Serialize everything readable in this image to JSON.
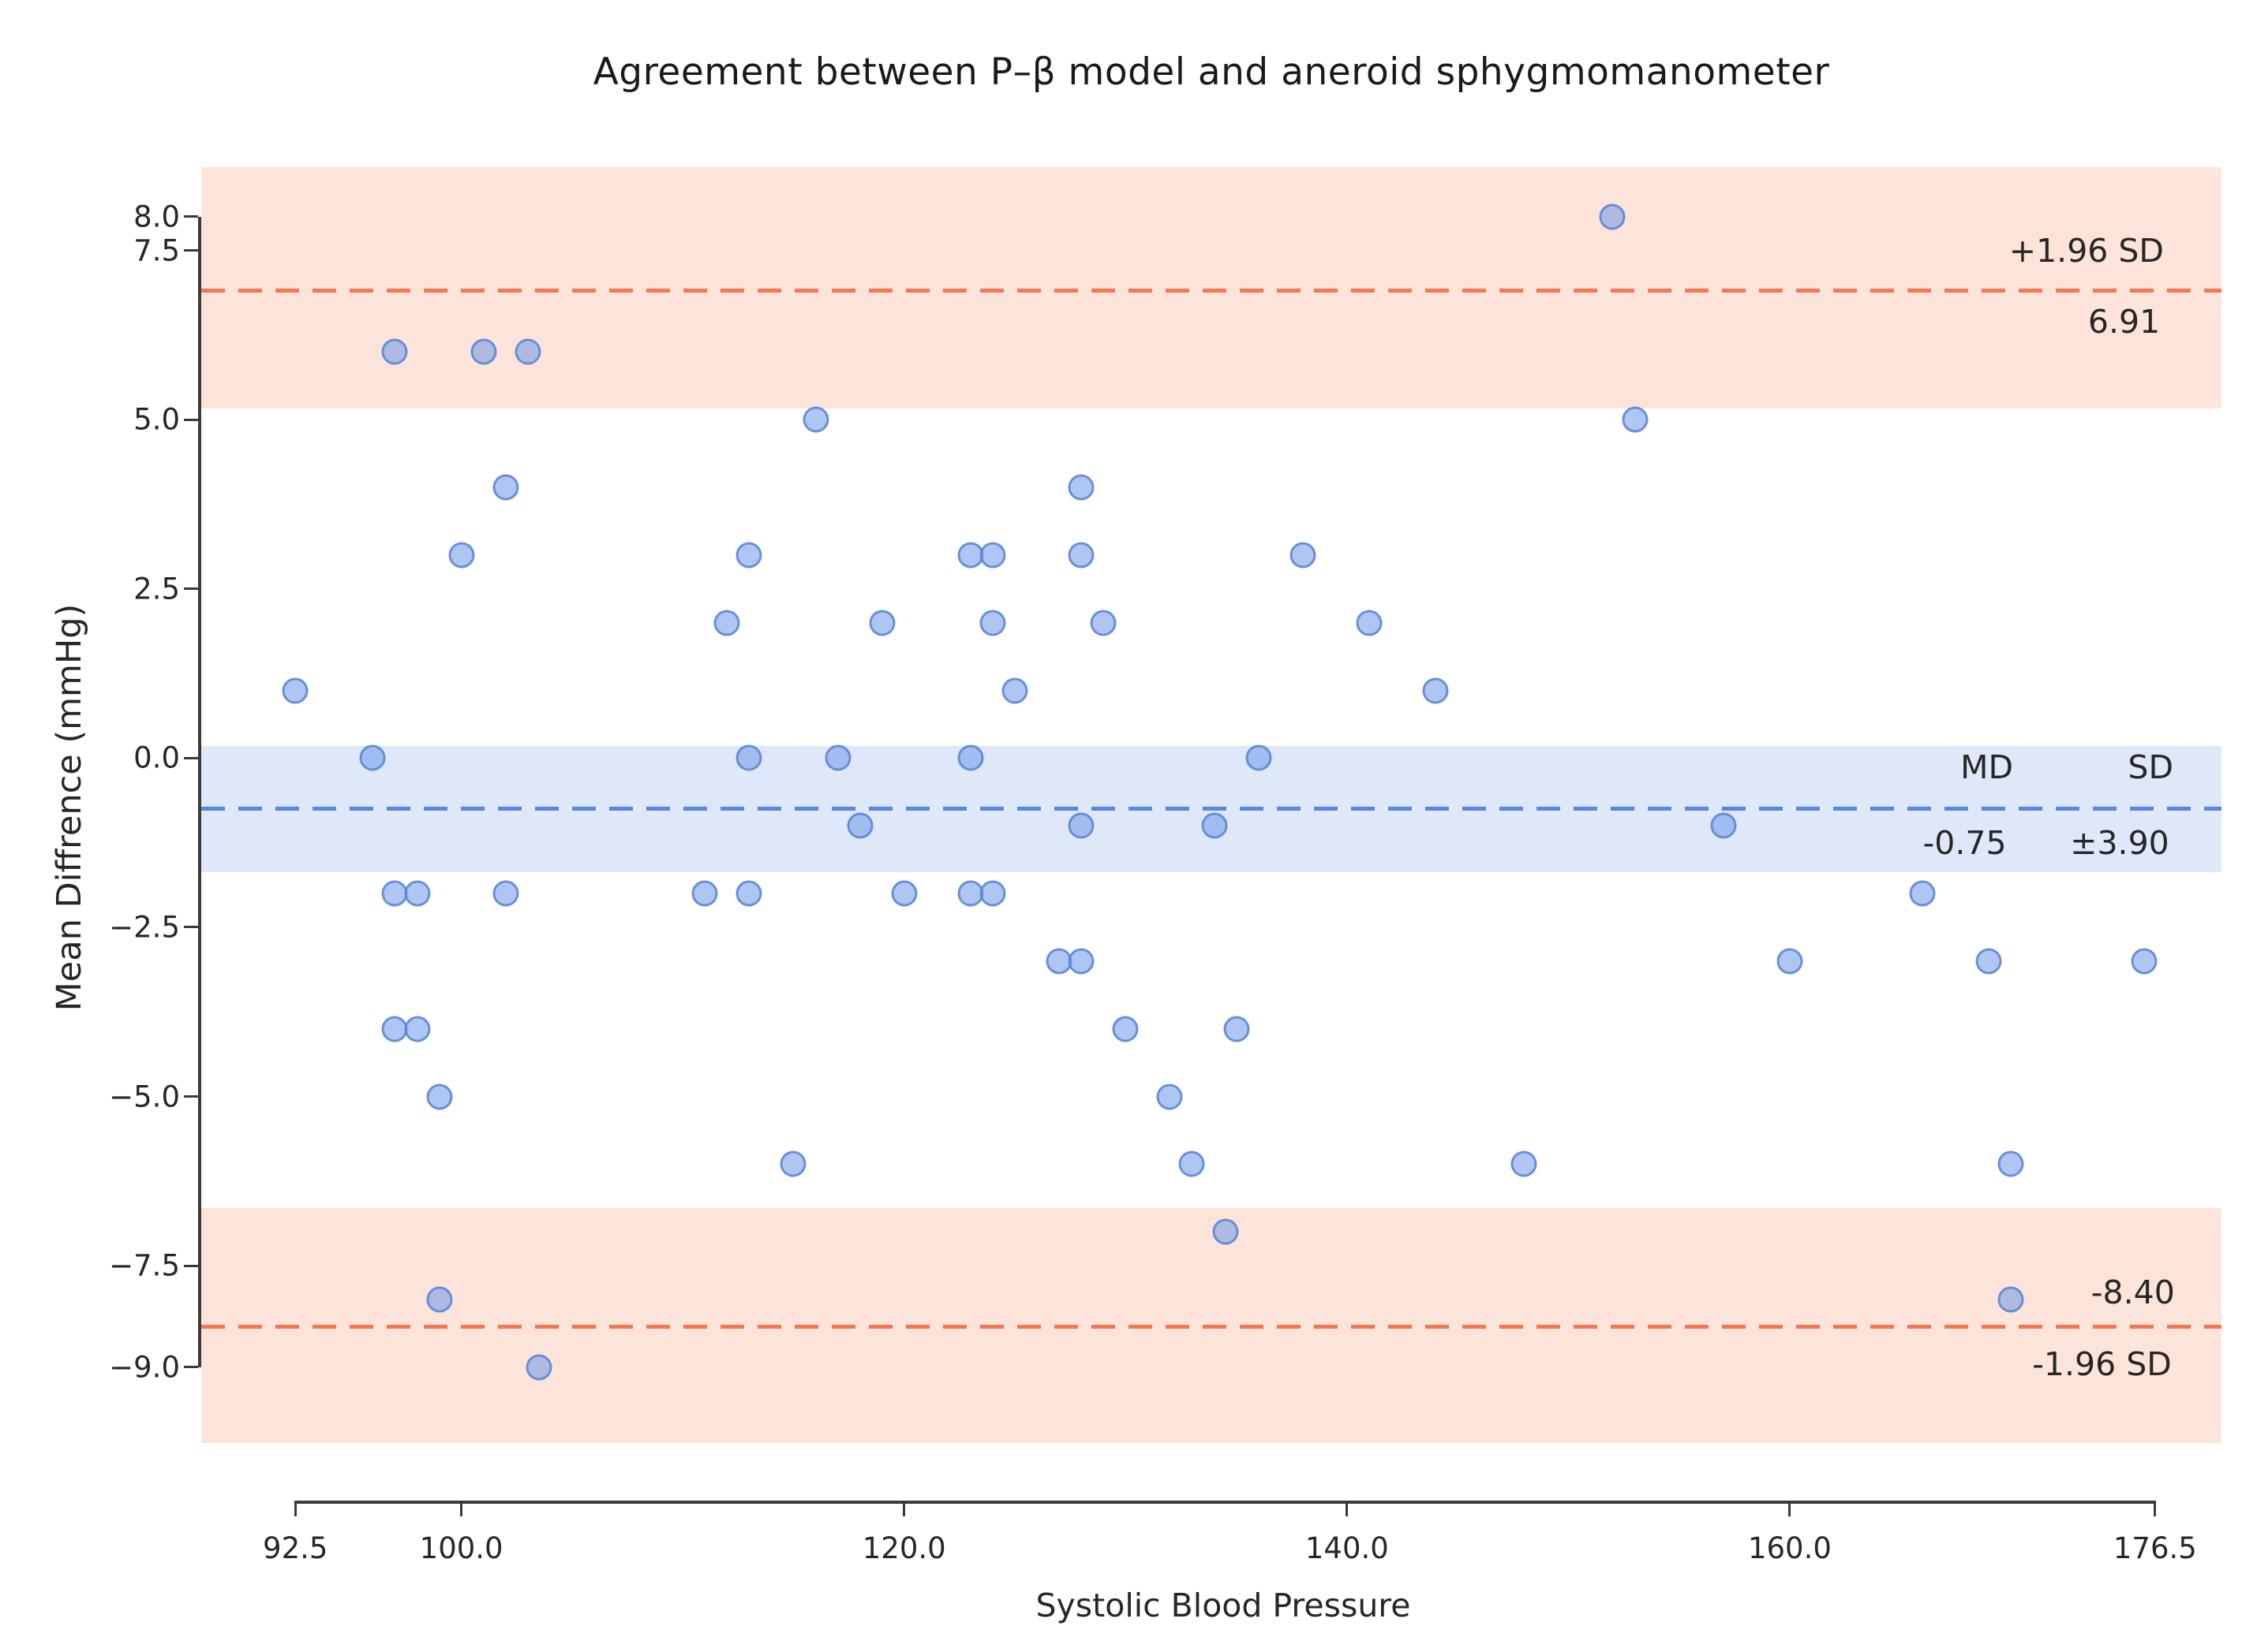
{
  "chart_data": {
    "type": "scatter",
    "title": "Agreement between P–β model and aneroid sphygmomanometer",
    "xlabel": "Systolic Blood Pressure",
    "ylabel": "Mean Diffrence (mmHg)",
    "xlim": [
      88.25,
      179.5
    ],
    "ylim": [
      -10.12,
      8.73
    ],
    "grid": false,
    "x_ticks": [
      {
        "v": 92.5,
        "label": "92.5"
      },
      {
        "v": 100.0,
        "label": "100.0"
      },
      {
        "v": 120.0,
        "label": "120.0"
      },
      {
        "v": 140.0,
        "label": "140.0"
      },
      {
        "v": 160.0,
        "label": "160.0"
      },
      {
        "v": 176.5,
        "label": "176.5"
      }
    ],
    "y_ticks": [
      {
        "v": 8.0,
        "label": "8.0"
      },
      {
        "v": 7.5,
        "label": "7.5"
      },
      {
        "v": 5.0,
        "label": "5.0"
      },
      {
        "v": 2.5,
        "label": "2.5"
      },
      {
        "v": 0.0,
        "label": "0.0"
      },
      {
        "v": -2.5,
        "label": "−2.5"
      },
      {
        "v": -5.0,
        "label": "−5.0"
      },
      {
        "v": -7.5,
        "label": "−7.5"
      },
      {
        "v": -9.0,
        "label": "−9.0"
      }
    ],
    "points": [
      [
        152,
        8
      ],
      [
        97,
        6
      ],
      [
        101,
        6
      ],
      [
        103,
        6
      ],
      [
        116,
        5
      ],
      [
        153,
        5
      ],
      [
        102,
        4
      ],
      [
        128,
        4
      ],
      [
        100,
        3
      ],
      [
        113,
        3
      ],
      [
        123,
        3
      ],
      [
        124,
        3
      ],
      [
        128,
        3
      ],
      [
        138,
        3
      ],
      [
        112,
        2
      ],
      [
        119,
        2
      ],
      [
        124,
        2
      ],
      [
        129,
        2
      ],
      [
        141,
        2
      ],
      [
        92.5,
        1
      ],
      [
        125,
        1
      ],
      [
        144,
        1
      ],
      [
        96,
        0
      ],
      [
        113,
        0
      ],
      [
        117,
        0
      ],
      [
        123,
        0
      ],
      [
        136,
        0
      ],
      [
        118,
        -1
      ],
      [
        128,
        -1
      ],
      [
        134,
        -1
      ],
      [
        157,
        -1
      ],
      [
        97,
        -2
      ],
      [
        98,
        -2
      ],
      [
        102,
        -2
      ],
      [
        111,
        -2
      ],
      [
        113,
        -2
      ],
      [
        120,
        -2
      ],
      [
        123,
        -2
      ],
      [
        124,
        -2
      ],
      [
        166,
        -2
      ],
      [
        127,
        -3
      ],
      [
        128,
        -3
      ],
      [
        160,
        -3
      ],
      [
        169,
        -3
      ],
      [
        176,
        -3
      ],
      [
        97,
        -4
      ],
      [
        98,
        -4
      ],
      [
        130,
        -4
      ],
      [
        135,
        -4
      ],
      [
        99,
        -5
      ],
      [
        132,
        -5
      ],
      [
        115,
        -6
      ],
      [
        133,
        -6
      ],
      [
        148,
        -6
      ],
      [
        170,
        -6
      ],
      [
        134.5,
        -7
      ],
      [
        99,
        -8
      ],
      [
        170,
        -8
      ],
      [
        103.5,
        -9
      ]
    ],
    "lines": [
      {
        "id": "upper-loa-line",
        "y": 6.91,
        "color": "#f4774e"
      },
      {
        "id": "mean-diff-line",
        "y": -0.75,
        "color": "#5a85e8"
      },
      {
        "id": "lower-loa-line",
        "y": -8.4,
        "color": "#f4774e"
      }
    ],
    "bands": [
      {
        "id": "upper-loa-ci-band",
        "y1": 8.73,
        "y2": 5.16,
        "color": "#fce4da"
      },
      {
        "id": "mean-diff-ci-band",
        "y1": 0.18,
        "y2": -1.68,
        "color": "#dfe8f8"
      },
      {
        "id": "lower-loa-ci-band",
        "y1": -6.65,
        "y2": -10.12,
        "color": "#fce4da"
      }
    ],
    "annotations": [
      {
        "id": "upper-loa-label",
        "text": "+1.96 SD",
        "x": 173.4,
        "y": 7.5
      },
      {
        "id": "upper-loa-value",
        "text": "6.91",
        "x": 175.1,
        "y": 6.45
      },
      {
        "id": "md-header",
        "text": "MD",
        "x": 168.9,
        "y": -0.14
      },
      {
        "id": "sd-header",
        "text": "SD",
        "x": 176.3,
        "y": -0.14
      },
      {
        "id": "md-value",
        "text": "-0.75",
        "x": 167.9,
        "y": -1.25
      },
      {
        "id": "sd-value",
        "text": "±3.90",
        "x": 174.9,
        "y": -1.25
      },
      {
        "id": "lower-loa-value",
        "text": "-8.40",
        "x": 175.5,
        "y": -7.9
      },
      {
        "id": "lower-loa-label",
        "text": "-1.96 SD",
        "x": 174.1,
        "y": -8.95
      }
    ],
    "stats": {
      "mean_difference": "-0.75",
      "sd": "±3.90",
      "upper_loa": "6.91",
      "lower_loa": "-8.40"
    },
    "colors": {
      "marker_fill": "rgba(109,151,231,0.55)",
      "marker_edge": "rgba(86,130,214,0.8)",
      "mean_line": "#5a85e8",
      "loa_line": "#f4774e",
      "mean_band": "#dfe8f8",
      "loa_band": "#fce4da",
      "text": "#262626"
    }
  }
}
